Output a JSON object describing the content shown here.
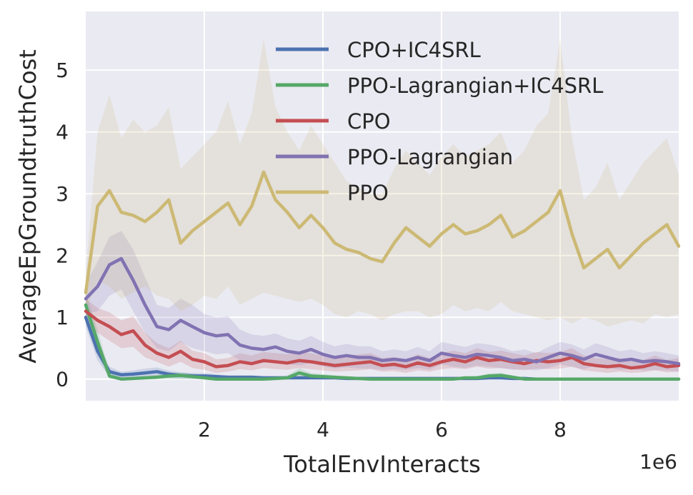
{
  "chart_data": {
    "type": "line",
    "title": "",
    "xlabel": "TotalEnvInteracts",
    "ylabel": "AverageEpGroundtruthCost",
    "x_offset_label": "1e6",
    "xlim": [
      0.0,
      10.0
    ],
    "ylim": [
      -0.35,
      5.95
    ],
    "xticks": [
      2,
      4,
      6,
      8
    ],
    "xtick_labels": [
      "2",
      "4",
      "6",
      "8"
    ],
    "yticks": [
      0,
      1,
      2,
      3,
      4,
      5
    ],
    "ytick_labels": [
      "0",
      "1",
      "2",
      "3",
      "4",
      "5"
    ],
    "grid": true,
    "legend_position": "top-right",
    "x": [
      0.0,
      0.2,
      0.4,
      0.6,
      0.8,
      1.0,
      1.2,
      1.4,
      1.6,
      1.8,
      2.0,
      2.2,
      2.4,
      2.6,
      2.8,
      3.0,
      3.2,
      3.4,
      3.6,
      3.8,
      4.0,
      4.2,
      4.4,
      4.6,
      4.8,
      5.0,
      5.2,
      5.4,
      5.6,
      5.8,
      6.0,
      6.2,
      6.4,
      6.6,
      6.8,
      7.0,
      7.2,
      7.4,
      7.6,
      7.8,
      8.0,
      8.2,
      8.4,
      8.6,
      8.8,
      9.0,
      9.2,
      9.4,
      9.6,
      9.8,
      10.0
    ],
    "series": [
      {
        "name": "CPO+IC4SRL",
        "color": "#4c72b0",
        "values": [
          1.0,
          0.45,
          0.12,
          0.07,
          0.08,
          0.1,
          0.12,
          0.08,
          0.06,
          0.05,
          0.05,
          0.04,
          0.03,
          0.03,
          0.03,
          0.02,
          0.02,
          0.02,
          0.02,
          0.02,
          0.02,
          0.02,
          0.01,
          0.01,
          0.01,
          0.01,
          0.01,
          0.01,
          0.01,
          0.01,
          0.01,
          0.01,
          0.01,
          0.01,
          0.02,
          0.02,
          0.01,
          0.01,
          0.0,
          0.0,
          0.0,
          0.0,
          0.0,
          0.0,
          0.0,
          0.0,
          0.0,
          0.0,
          0.0,
          0.0,
          0.0
        ],
        "lower": [
          0.85,
          0.3,
          0.04,
          0.02,
          0.02,
          0.03,
          0.05,
          0.02,
          0.01,
          0.0,
          0.0,
          0.0,
          0.0,
          0.0,
          0.0,
          0.0,
          0.0,
          0.0,
          0.0,
          0.0,
          0.0,
          0.0,
          0.0,
          0.0,
          0.0,
          0.0,
          0.0,
          0.0,
          0.0,
          0.0,
          0.0,
          0.0,
          0.0,
          0.0,
          0.0,
          0.0,
          0.0,
          0.0,
          0.0,
          0.0,
          0.0,
          0.0,
          0.0,
          0.0,
          0.0,
          0.0,
          0.0,
          0.0,
          0.0,
          0.0,
          0.0
        ],
        "upper": [
          1.15,
          0.6,
          0.2,
          0.12,
          0.14,
          0.17,
          0.19,
          0.14,
          0.11,
          0.1,
          0.1,
          0.08,
          0.06,
          0.06,
          0.06,
          0.05,
          0.05,
          0.05,
          0.05,
          0.05,
          0.05,
          0.05,
          0.03,
          0.03,
          0.03,
          0.03,
          0.03,
          0.03,
          0.03,
          0.03,
          0.03,
          0.03,
          0.03,
          0.03,
          0.04,
          0.04,
          0.03,
          0.03,
          0.01,
          0.01,
          0.01,
          0.01,
          0.01,
          0.01,
          0.01,
          0.01,
          0.01,
          0.01,
          0.01,
          0.01,
          0.01
        ]
      },
      {
        "name": "PPO-Lagrangian+IC4SRL",
        "color": "#55a868",
        "values": [
          1.2,
          0.6,
          0.05,
          0.0,
          0.01,
          0.02,
          0.03,
          0.05,
          0.06,
          0.04,
          0.02,
          0.0,
          0.0,
          0.0,
          0.0,
          0.0,
          0.01,
          0.02,
          0.1,
          0.05,
          0.04,
          0.03,
          0.02,
          0.01,
          0.0,
          0.0,
          0.0,
          0.0,
          0.0,
          0.0,
          0.0,
          0.0,
          0.02,
          0.02,
          0.05,
          0.06,
          0.03,
          0.0,
          0.0,
          0.0,
          0.0,
          0.0,
          0.0,
          0.0,
          0.0,
          0.0,
          0.0,
          0.0,
          0.0,
          0.0,
          0.0
        ],
        "lower": [
          1.0,
          0.4,
          0.0,
          0.0,
          0.0,
          0.0,
          0.0,
          0.0,
          0.0,
          0.0,
          0.0,
          0.0,
          0.0,
          0.0,
          0.0,
          0.0,
          0.0,
          0.0,
          0.02,
          0.0,
          0.0,
          0.0,
          0.0,
          0.0,
          0.0,
          0.0,
          0.0,
          0.0,
          0.0,
          0.0,
          0.0,
          0.0,
          0.0,
          0.0,
          0.0,
          0.0,
          0.0,
          0.0,
          0.0,
          0.0,
          0.0,
          0.0,
          0.0,
          0.0,
          0.0,
          0.0,
          0.0,
          0.0,
          0.0,
          0.0,
          0.0
        ],
        "upper": [
          1.4,
          0.8,
          0.12,
          0.03,
          0.04,
          0.05,
          0.07,
          0.1,
          0.11,
          0.09,
          0.06,
          0.02,
          0.02,
          0.02,
          0.02,
          0.02,
          0.03,
          0.06,
          0.18,
          0.1,
          0.08,
          0.06,
          0.04,
          0.03,
          0.01,
          0.01,
          0.01,
          0.01,
          0.01,
          0.01,
          0.01,
          0.01,
          0.04,
          0.05,
          0.09,
          0.1,
          0.06,
          0.01,
          0.01,
          0.01,
          0.01,
          0.01,
          0.01,
          0.01,
          0.01,
          0.01,
          0.01,
          0.01,
          0.01,
          0.01,
          0.01
        ]
      },
      {
        "name": "CPO",
        "color": "#c44e52",
        "values": [
          1.1,
          0.95,
          0.85,
          0.72,
          0.78,
          0.55,
          0.42,
          0.35,
          0.45,
          0.32,
          0.28,
          0.2,
          0.22,
          0.28,
          0.25,
          0.3,
          0.28,
          0.26,
          0.3,
          0.28,
          0.25,
          0.22,
          0.24,
          0.26,
          0.28,
          0.22,
          0.24,
          0.2,
          0.26,
          0.22,
          0.28,
          0.32,
          0.28,
          0.35,
          0.3,
          0.32,
          0.28,
          0.25,
          0.3,
          0.28,
          0.3,
          0.35,
          0.25,
          0.22,
          0.2,
          0.22,
          0.18,
          0.2,
          0.25,
          0.2,
          0.22
        ],
        "lower": [
          0.9,
          0.75,
          0.62,
          0.5,
          0.52,
          0.35,
          0.28,
          0.2,
          0.28,
          0.18,
          0.15,
          0.1,
          0.12,
          0.16,
          0.14,
          0.18,
          0.16,
          0.15,
          0.18,
          0.16,
          0.14,
          0.12,
          0.13,
          0.14,
          0.16,
          0.12,
          0.13,
          0.1,
          0.14,
          0.12,
          0.16,
          0.18,
          0.16,
          0.2,
          0.17,
          0.18,
          0.16,
          0.14,
          0.17,
          0.16,
          0.17,
          0.2,
          0.14,
          0.12,
          0.1,
          0.12,
          0.1,
          0.11,
          0.14,
          0.11,
          0.12
        ],
        "upper": [
          1.3,
          1.15,
          1.08,
          0.95,
          1.02,
          0.75,
          0.58,
          0.5,
          0.62,
          0.46,
          0.42,
          0.32,
          0.34,
          0.42,
          0.38,
          0.44,
          0.42,
          0.4,
          0.44,
          0.42,
          0.38,
          0.34,
          0.36,
          0.4,
          0.42,
          0.34,
          0.36,
          0.32,
          0.4,
          0.34,
          0.42,
          0.46,
          0.42,
          0.5,
          0.44,
          0.46,
          0.42,
          0.38,
          0.44,
          0.42,
          0.44,
          0.5,
          0.38,
          0.34,
          0.32,
          0.34,
          0.28,
          0.31,
          0.38,
          0.31,
          0.34
        ]
      },
      {
        "name": "PPO-Lagrangian",
        "color": "#8172b2",
        "values": [
          1.3,
          1.5,
          1.85,
          1.95,
          1.6,
          1.2,
          0.85,
          0.8,
          0.95,
          0.85,
          0.75,
          0.7,
          0.72,
          0.55,
          0.5,
          0.48,
          0.52,
          0.45,
          0.42,
          0.48,
          0.4,
          0.35,
          0.38,
          0.35,
          0.35,
          0.3,
          0.32,
          0.3,
          0.35,
          0.3,
          0.42,
          0.38,
          0.35,
          0.4,
          0.38,
          0.35,
          0.3,
          0.32,
          0.28,
          0.35,
          0.42,
          0.38,
          0.32,
          0.4,
          0.35,
          0.3,
          0.32,
          0.28,
          0.3,
          0.28,
          0.25
        ],
        "lower": [
          1.05,
          1.1,
          1.35,
          1.45,
          1.1,
          0.75,
          0.5,
          0.45,
          0.6,
          0.5,
          0.45,
          0.4,
          0.42,
          0.3,
          0.28,
          0.26,
          0.3,
          0.24,
          0.22,
          0.26,
          0.2,
          0.17,
          0.19,
          0.17,
          0.17,
          0.15,
          0.16,
          0.15,
          0.18,
          0.15,
          0.24,
          0.2,
          0.18,
          0.22,
          0.2,
          0.18,
          0.15,
          0.16,
          0.14,
          0.18,
          0.24,
          0.2,
          0.16,
          0.22,
          0.18,
          0.15,
          0.16,
          0.14,
          0.15,
          0.14,
          0.12
        ],
        "upper": [
          1.55,
          1.9,
          2.3,
          2.4,
          2.1,
          1.65,
          1.2,
          1.15,
          1.3,
          1.2,
          1.05,
          1.0,
          1.02,
          0.8,
          0.72,
          0.7,
          0.74,
          0.66,
          0.62,
          0.7,
          0.6,
          0.53,
          0.57,
          0.53,
          0.53,
          0.45,
          0.48,
          0.45,
          0.52,
          0.45,
          0.6,
          0.56,
          0.52,
          0.58,
          0.56,
          0.52,
          0.45,
          0.48,
          0.42,
          0.52,
          0.6,
          0.56,
          0.48,
          0.58,
          0.52,
          0.45,
          0.48,
          0.42,
          0.45,
          0.42,
          0.38
        ]
      },
      {
        "name": "PPO",
        "color": "#ccb974",
        "values": [
          1.4,
          2.8,
          3.05,
          2.7,
          2.65,
          2.55,
          2.7,
          2.9,
          2.2,
          2.4,
          2.55,
          2.7,
          2.85,
          2.5,
          2.8,
          3.35,
          2.9,
          2.7,
          2.45,
          2.65,
          2.45,
          2.2,
          2.1,
          2.05,
          1.95,
          1.9,
          2.2,
          2.45,
          2.3,
          2.15,
          2.35,
          2.5,
          2.35,
          2.4,
          2.5,
          2.65,
          2.3,
          2.4,
          2.55,
          2.7,
          3.05,
          2.35,
          1.8,
          1.95,
          2.1,
          1.8,
          2.0,
          2.2,
          2.35,
          2.5,
          2.15
        ],
        "lower": [
          1.1,
          1.6,
          1.5,
          1.3,
          1.4,
          1.5,
          1.35,
          1.3,
          1.1,
          1.2,
          1.35,
          1.3,
          1.5,
          1.2,
          1.3,
          1.4,
          1.35,
          1.3,
          1.25,
          1.3,
          1.2,
          1.05,
          1.0,
          1.1,
          1.05,
          0.95,
          1.05,
          1.1,
          1.1,
          1.0,
          1.05,
          1.2,
          1.1,
          1.15,
          1.1,
          1.25,
          1.1,
          1.05,
          1.0,
          0.95,
          1.0,
          0.9,
          1.0,
          0.95,
          0.85,
          0.9,
          0.95,
          0.9,
          1.05,
          1.0,
          1.05
        ],
        "upper": [
          1.7,
          4.0,
          4.6,
          3.9,
          4.2,
          4.0,
          4.1,
          4.4,
          3.4,
          3.6,
          3.8,
          4.0,
          4.5,
          3.8,
          4.3,
          5.5,
          4.4,
          4.0,
          3.7,
          4.1,
          3.8,
          3.5,
          3.2,
          3.1,
          3.0,
          3.0,
          3.4,
          3.7,
          3.5,
          3.3,
          3.6,
          3.8,
          3.6,
          3.7,
          3.8,
          4.0,
          3.5,
          3.7,
          4.1,
          4.3,
          5.5,
          3.9,
          2.9,
          3.1,
          3.5,
          2.9,
          3.2,
          3.5,
          3.7,
          3.9,
          3.3
        ]
      }
    ]
  }
}
